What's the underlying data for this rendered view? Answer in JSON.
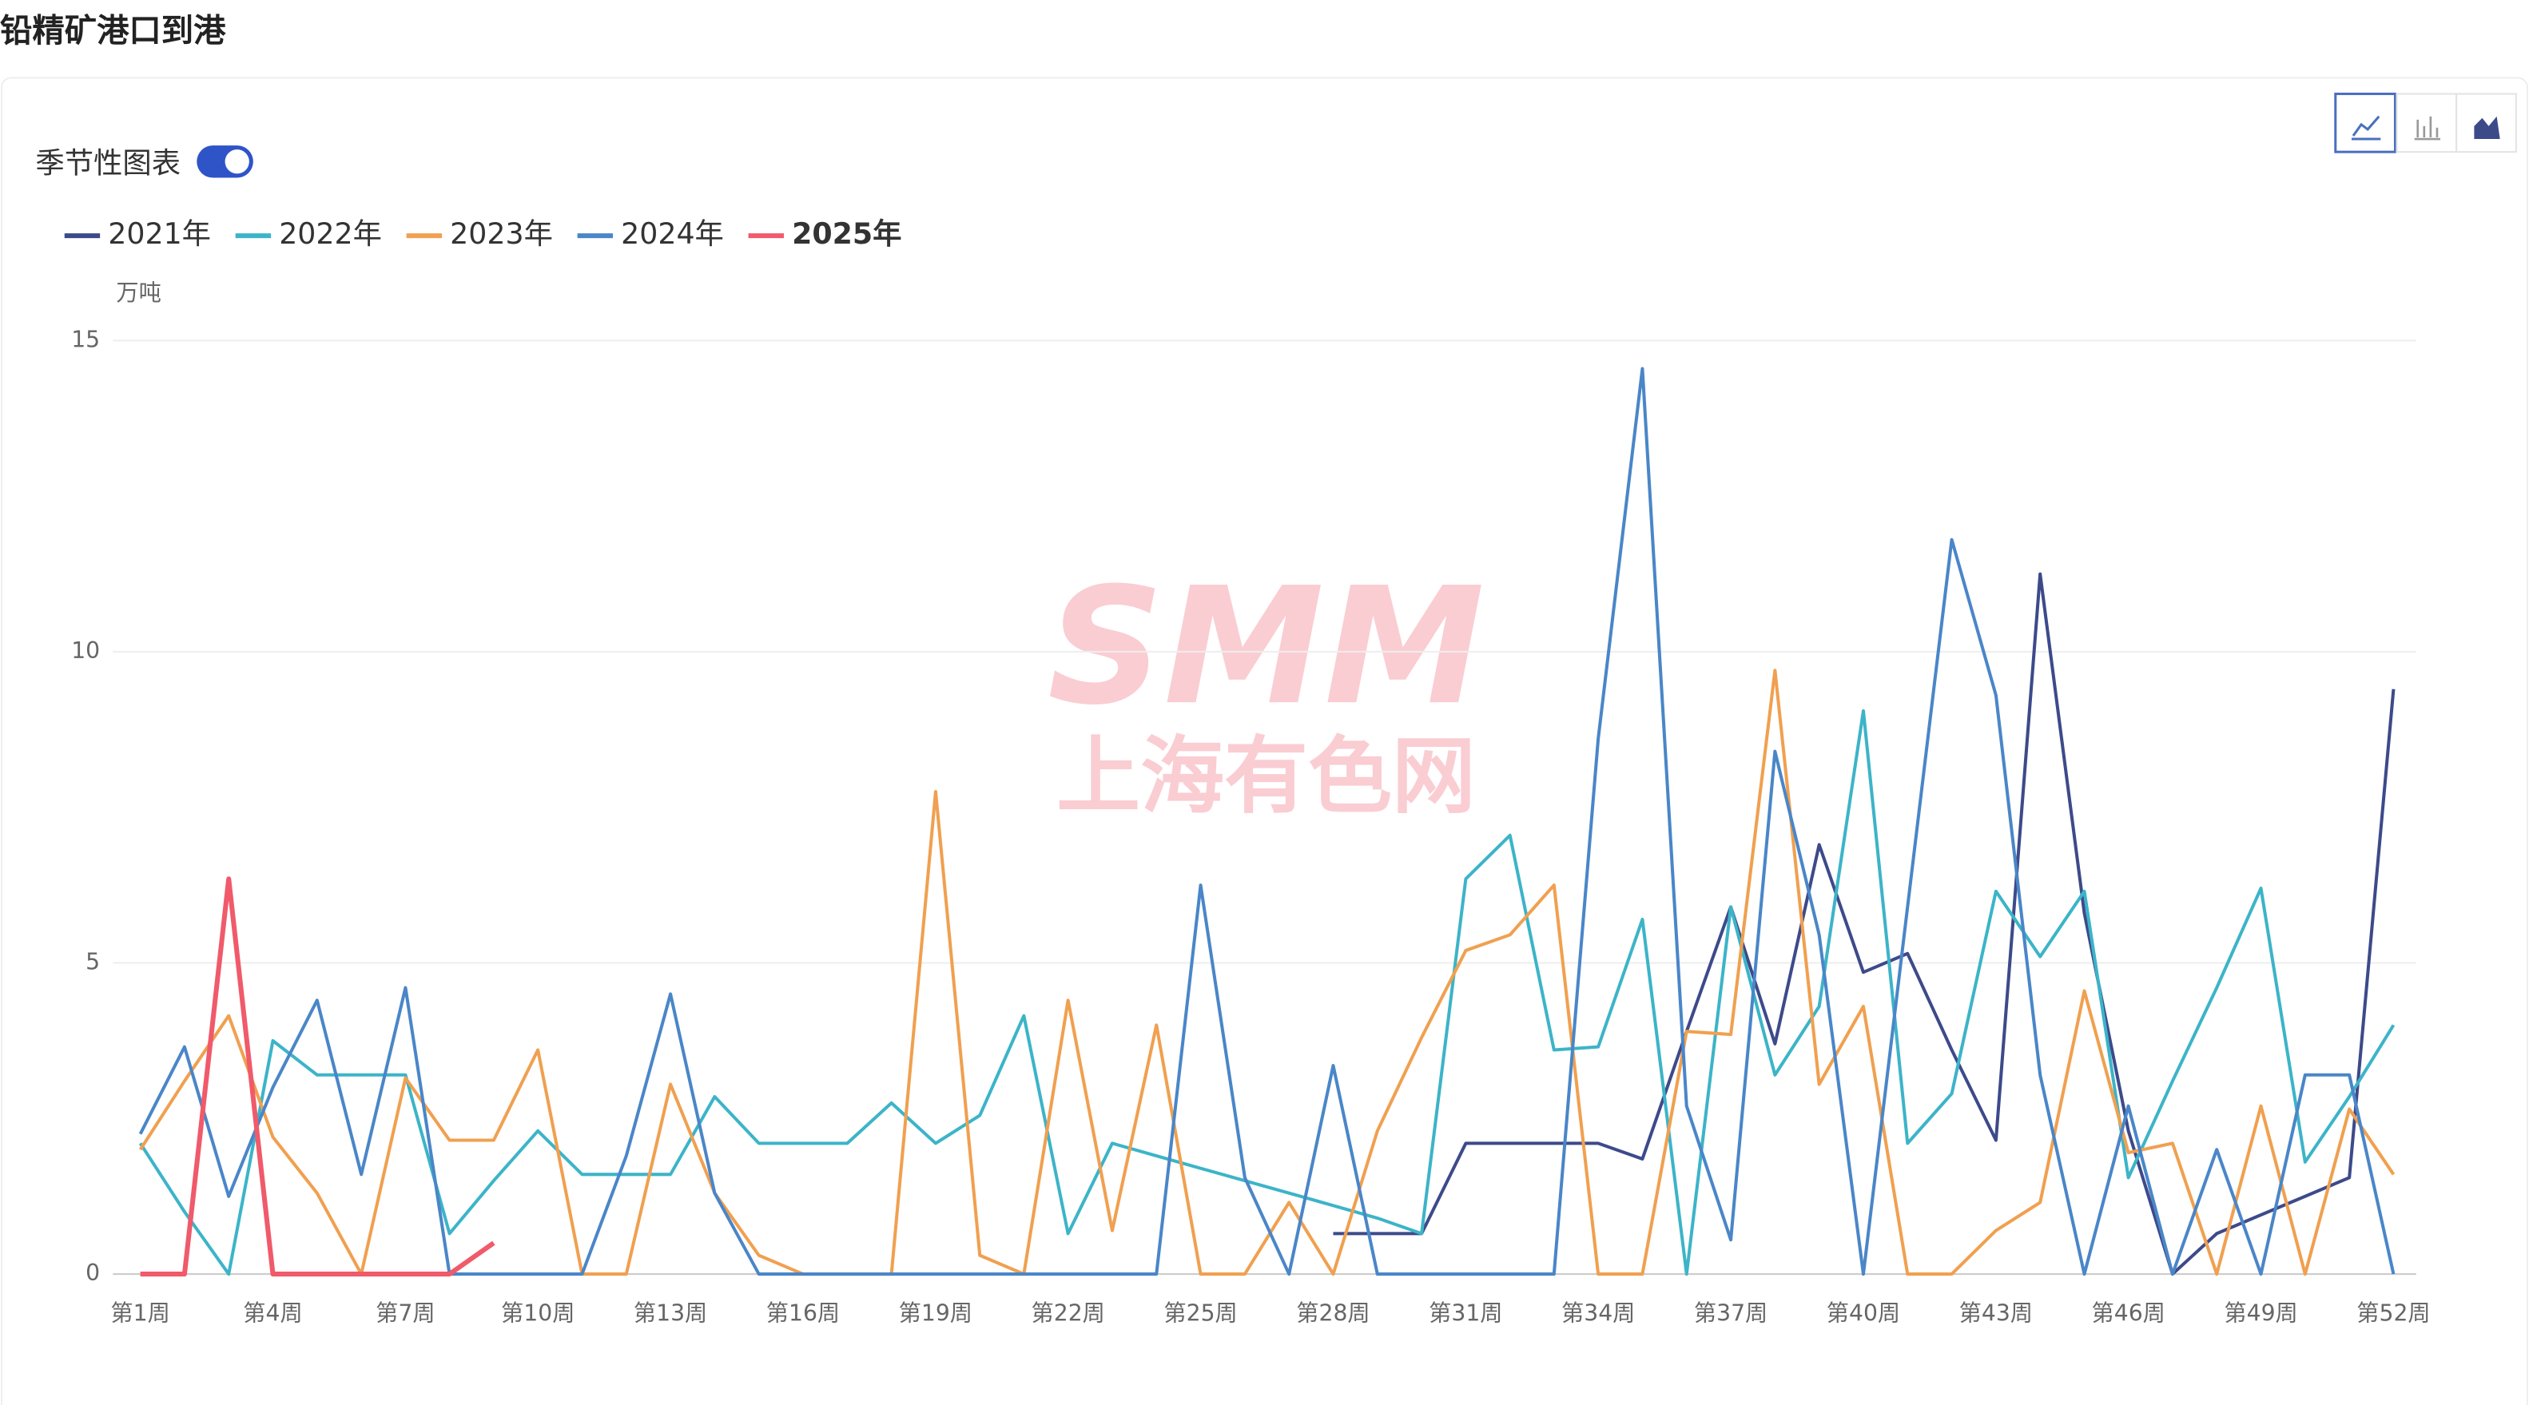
{
  "page_title": "铅精矿港口到港",
  "toggle_label": "季节性图表",
  "watermark": {
    "logo": "SMM",
    "text": "上海有色网"
  },
  "chart_data": {
    "type": "line",
    "y_label": "万吨",
    "categories": [
      "第1周",
      null,
      null,
      "第4周",
      null,
      null,
      "第7周",
      null,
      null,
      "第10周",
      null,
      null,
      "第13周",
      null,
      null,
      "第16周",
      null,
      null,
      "第19周",
      null,
      null,
      "第22周",
      null,
      null,
      "第25周",
      null,
      null,
      "第28周",
      null,
      null,
      "第31周",
      null,
      null,
      "第34周",
      null,
      null,
      "第37周",
      null,
      null,
      "第40周",
      null,
      null,
      "第43周",
      null,
      null,
      "第46周",
      null,
      null,
      "第49周",
      null,
      null,
      "第52周"
    ],
    "ylim": [
      0,
      15
    ],
    "yticks": [
      0,
      5,
      10,
      15
    ],
    "grid": true,
    "series": [
      {
        "name": "2021年",
        "color": "#3d4a8a",
        "values": [
          null,
          null,
          null,
          null,
          null,
          null,
          null,
          null,
          null,
          null,
          null,
          null,
          null,
          null,
          null,
          null,
          null,
          null,
          null,
          null,
          null,
          null,
          null,
          null,
          null,
          null,
          null,
          0.65,
          0.65,
          0.65,
          2.1,
          2.1,
          2.1,
          2.1,
          1.85,
          3.9,
          5.9,
          3.7,
          6.9,
          4.85,
          5.15,
          3.6,
          2.15,
          11.25,
          5.8,
          2.3,
          0,
          0.65,
          0.95,
          1.25,
          1.55,
          9.4
        ]
      },
      {
        "name": "2022年",
        "color": "#3cb4c8",
        "values": [
          2.1,
          1.0,
          0,
          3.75,
          3.2,
          3.2,
          3.2,
          0.65,
          1.5,
          2.3,
          1.6,
          1.6,
          1.6,
          2.85,
          2.1,
          2.1,
          2.1,
          2.75,
          2.1,
          2.55,
          4.15,
          0.65,
          2.1,
          1.9,
          1.7,
          1.5,
          1.3,
          1.1,
          0.9,
          0.65,
          6.35,
          7.05,
          3.6,
          3.65,
          5.7,
          0,
          5.9,
          3.2,
          4.3,
          9.05,
          2.1,
          2.9,
          6.15,
          5.1,
          6.15,
          1.55,
          3.1,
          4.6,
          6.2,
          1.8,
          2.85,
          4.0
        ]
      },
      {
        "name": "2023年",
        "color": "#f0a050",
        "values": [
          2.0,
          3.1,
          4.15,
          2.2,
          1.3,
          0,
          3.15,
          2.15,
          2.15,
          3.6,
          0,
          0,
          3.05,
          1.3,
          0.3,
          0,
          0,
          0,
          7.75,
          0.3,
          0,
          4.4,
          0.7,
          4.0,
          0,
          0,
          1.15,
          0,
          2.3,
          3.8,
          5.2,
          5.45,
          6.25,
          0,
          0,
          3.9,
          3.85,
          9.7,
          3.05,
          4.3,
          0,
          0,
          0.7,
          1.15,
          4.55,
          1.95,
          2.1,
          0,
          2.7,
          0,
          2.65,
          1.6
        ]
      },
      {
        "name": "2024年",
        "color": "#4a86c8",
        "values": [
          2.25,
          3.65,
          1.25,
          3.0,
          4.4,
          1.6,
          4.6,
          0,
          0,
          0,
          0,
          1.9,
          4.5,
          1.3,
          0,
          0,
          0,
          0,
          0,
          0,
          0,
          0,
          0,
          0,
          6.25,
          1.55,
          0,
          3.35,
          0,
          0,
          0,
          0,
          0,
          8.6,
          14.55,
          2.7,
          0.55,
          8.4,
          5.45,
          0,
          5.9,
          11.8,
          9.3,
          3.2,
          0,
          2.7,
          0,
          2.0,
          0,
          3.2,
          3.2,
          0
        ]
      },
      {
        "name": "2025年",
        "color": "#f05a6a",
        "values": [
          0,
          0,
          6.35,
          0,
          0,
          0,
          0,
          0,
          0.5,
          null,
          null,
          null,
          null,
          null,
          null,
          null,
          null,
          null,
          null,
          null,
          null,
          null,
          null,
          null,
          null,
          null,
          null,
          null,
          null,
          null,
          null,
          null,
          null,
          null,
          null,
          null,
          null,
          null,
          null,
          null,
          null,
          null,
          null,
          null,
          null,
          null,
          null,
          null,
          null,
          null,
          null,
          null
        ]
      }
    ]
  }
}
